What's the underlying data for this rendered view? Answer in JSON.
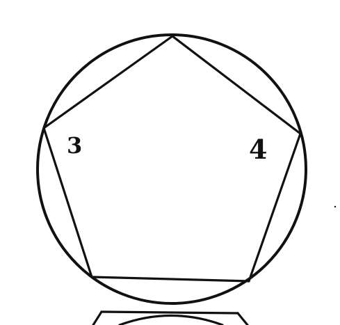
{
  "figure": {
    "kind": "regular pentagon inscribed in a circle",
    "sides": 5,
    "labels": [
      {
        "id": "vertex-3",
        "text": "3"
      },
      {
        "id": "vertex-4",
        "text": "4"
      }
    ],
    "colors": {
      "background": "#ffffff",
      "ink": "#111111"
    }
  }
}
